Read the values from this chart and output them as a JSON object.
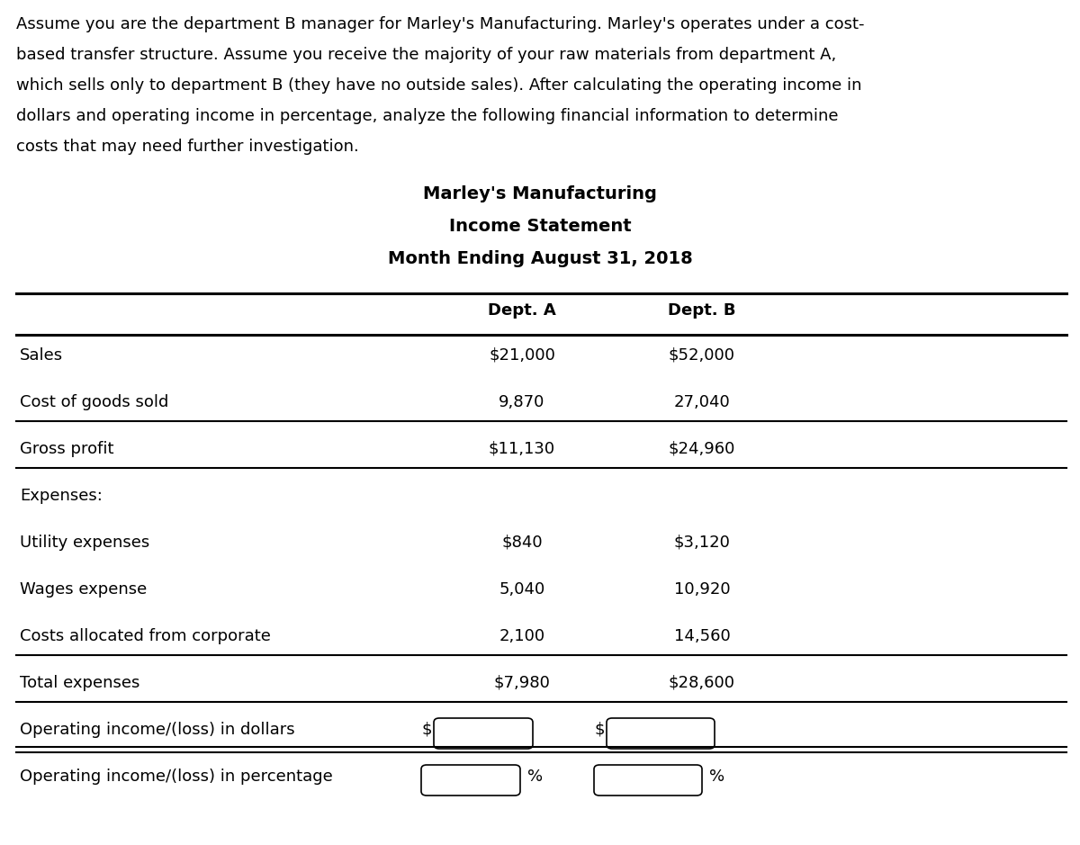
{
  "intro_lines": [
    "Assume you are the department B manager for Marley's Manufacturing. Marley's operates under a cost-",
    "based transfer structure. Assume you receive the majority of your raw materials from department A,",
    "which sells only to department B (they have no outside sales). After calculating the operating income in",
    "dollars and operating income in percentage, analyze the following financial information to determine",
    "costs that may need further investigation."
  ],
  "title1": "Marley's Manufacturing",
  "title2": "Income Statement",
  "title3": "Month Ending August 31, 2018",
  "col_headers": [
    "Dept. A",
    "Dept. B"
  ],
  "rows": [
    {
      "label": "Sales",
      "dept_a": "$21,000",
      "dept_b": "$52,000",
      "line_below": false,
      "type": "normal"
    },
    {
      "label": "Cost of goods sold",
      "dept_a": "9,870",
      "dept_b": "27,040",
      "line_below": true,
      "type": "normal"
    },
    {
      "label": "Gross profit",
      "dept_a": "$11,130",
      "dept_b": "$24,960",
      "line_below": true,
      "type": "normal"
    },
    {
      "label": "Expenses:",
      "dept_a": "",
      "dept_b": "",
      "line_below": false,
      "type": "normal"
    },
    {
      "label": "Utility expenses",
      "dept_a": "$840",
      "dept_b": "$3,120",
      "line_below": false,
      "type": "normal"
    },
    {
      "label": "Wages expense",
      "dept_a": "5,040",
      "dept_b": "10,920",
      "line_below": false,
      "type": "normal"
    },
    {
      "label": "Costs allocated from corporate",
      "dept_a": "2,100",
      "dept_b": "14,560",
      "line_below": true,
      "type": "normal"
    },
    {
      "label": "Total expenses",
      "dept_a": "$7,980",
      "dept_b": "$28,600",
      "line_below": true,
      "type": "normal"
    },
    {
      "label": "Operating income/(loss) in dollars",
      "dept_a": "input_dollar",
      "dept_b": "input_dollar",
      "line_below": true,
      "type": "dollar"
    },
    {
      "label": "Operating income/(loss) in percentage",
      "dept_a": "input_pct",
      "dept_b": "input_pct",
      "line_below": false,
      "type": "pct"
    }
  ],
  "bg": "#ffffff",
  "fg": "#000000",
  "font_intro": 13.0,
  "font_title": 14.0,
  "font_table": 13.0,
  "fig_w": 12.0,
  "fig_h": 9.39,
  "dpi": 100
}
